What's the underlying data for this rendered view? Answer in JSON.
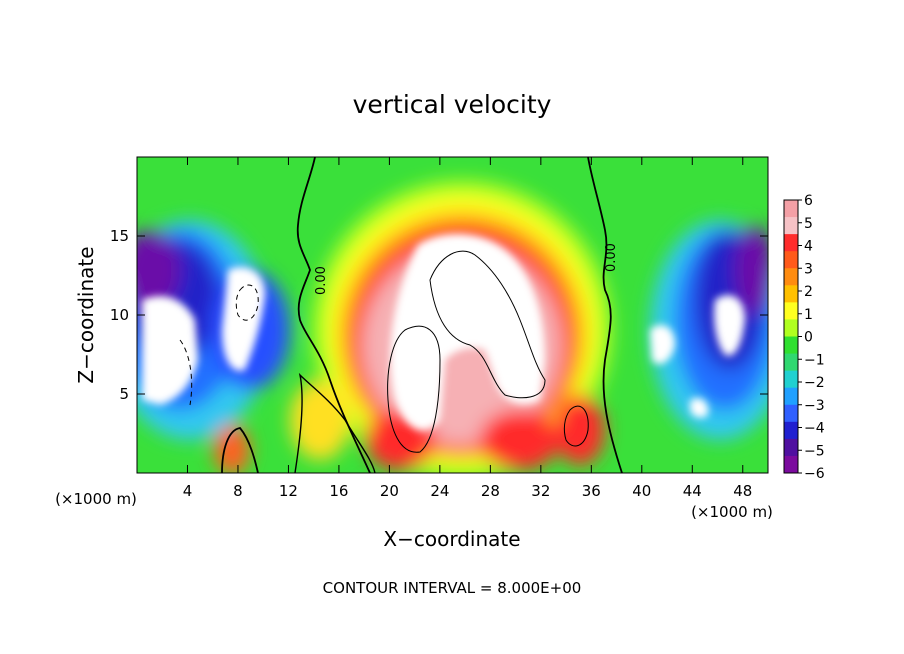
{
  "chart_data": {
    "type": "heatmap",
    "title": "vertical velocity",
    "xlabel": "X−coordinate",
    "ylabel": "Z−coordinate",
    "x_unit": "(×1000 m)",
    "x_unit_right": "(×1000 m)",
    "xlim": [
      0,
      50
    ],
    "ylim": [
      0,
      20
    ],
    "x_ticks": [
      4,
      8,
      12,
      16,
      20,
      24,
      28,
      32,
      36,
      40,
      44,
      48
    ],
    "y_ticks": [
      5,
      10,
      15
    ],
    "colorbar": {
      "ticks": [
        6,
        5,
        4,
        3,
        2,
        1,
        0,
        -1,
        -2,
        -3,
        -4,
        -5,
        -6
      ],
      "tick_labels": [
        "6",
        "5",
        "4",
        "3",
        "2",
        "1",
        "0",
        "−1",
        "−2",
        "−3",
        "−4",
        "−5",
        "−6"
      ],
      "range": [
        -6,
        6
      ],
      "colors": [
        "#f4a0a6",
        "#f6c2c6",
        "#ff2c2c",
        "#ff5a1a",
        "#ff8c10",
        "#ffc000",
        "#ffff20",
        "#b0ff20",
        "#30e030",
        "#30d870",
        "#20d0d0",
        "#20a0ff",
        "#3060ff",
        "#2020d0",
        "#5010a0",
        "#7b0b9e"
      ]
    },
    "contour_labels": [
      "0.00",
      "0.00"
    ],
    "footer": "CONTOUR INTERVAL = 8.000E+00"
  }
}
